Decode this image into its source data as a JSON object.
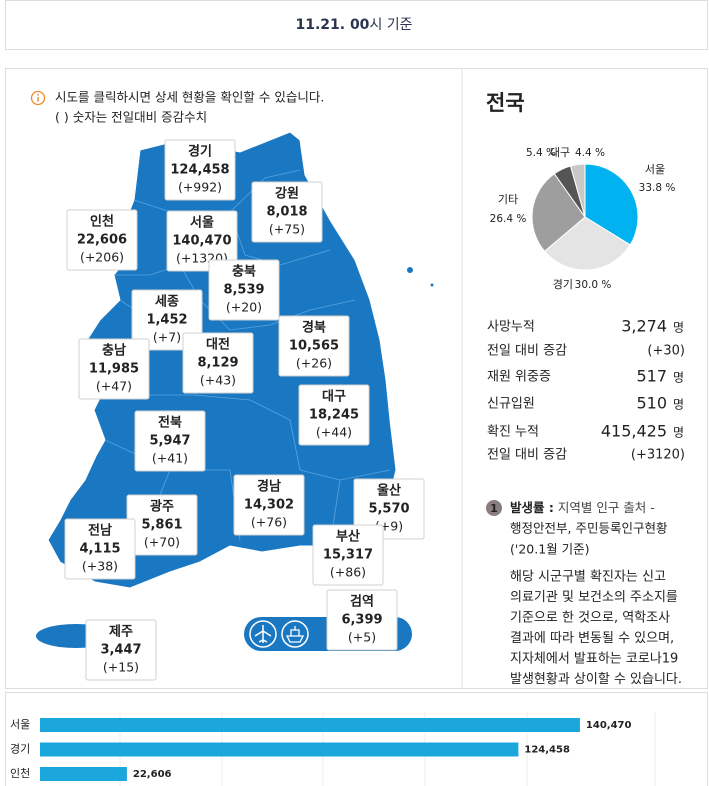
{
  "header": {
    "date": "11.21. 00",
    "suffix": "시 기준"
  },
  "notice": {
    "lines": [
      "시도를 클릭하시면 상세 현황을 확인할 수 있습니다.",
      "( ) 숫자는 전일대비 증감수치"
    ]
  },
  "regions": [
    {
      "name": "경기",
      "total": "124,458",
      "change": "(+992)"
    },
    {
      "name": "강원",
      "total": "8,018",
      "change": "(+75)"
    },
    {
      "name": "인천",
      "total": "22,606",
      "change": "(+206)"
    },
    {
      "name": "서울",
      "total": "140,470",
      "change": "(+1320)"
    },
    {
      "name": "충북",
      "total": "8,539",
      "change": "(+20)"
    },
    {
      "name": "세종",
      "total": "1,452",
      "change": "(+7)"
    },
    {
      "name": "충남",
      "total": "11,985",
      "change": "(+47)"
    },
    {
      "name": "대전",
      "total": "8,129",
      "change": "(+43)"
    },
    {
      "name": "경북",
      "total": "10,565",
      "change": "(+26)"
    },
    {
      "name": "대구",
      "total": "18,245",
      "change": "(+44)"
    },
    {
      "name": "전북",
      "total": "5,947",
      "change": "(+41)"
    },
    {
      "name": "경남",
      "total": "14,302",
      "change": "(+76)"
    },
    {
      "name": "울산",
      "total": "5,570",
      "change": "(+9)"
    },
    {
      "name": "광주",
      "total": "5,861",
      "change": "(+70)"
    },
    {
      "name": "전남",
      "total": "4,115",
      "change": "(+38)"
    },
    {
      "name": "부산",
      "total": "15,317",
      "change": "(+86)"
    },
    {
      "name": "검역",
      "total": "6,399",
      "change": "(+5)"
    },
    {
      "name": "제주",
      "total": "3,447",
      "change": "(+15)"
    }
  ],
  "summary": {
    "title": "전국",
    "pie": {
      "slices": [
        {
          "name": "서울",
          "value": 33.8,
          "label": "33.8 %",
          "color": "#00b3f0"
        },
        {
          "name": "경기",
          "value": 30.0,
          "label": "30.0 %",
          "color": "#e4e4e4"
        },
        {
          "name": "기타",
          "value": 26.4,
          "label": "26.4 %",
          "color": "#9e9e9e"
        },
        {
          "value": 5.4,
          "label": "5.4 %",
          "color": "#555555"
        },
        {
          "name": "대구",
          "value": 4.4,
          "label": "4.4 %",
          "color": "#c8c8c8"
        }
      ]
    },
    "stats": [
      {
        "label": "사망누적",
        "value": "3,274",
        "unit": "명"
      },
      {
        "label": "전일 대비 증감",
        "value": "(+30)",
        "color": "#2b8fd6"
      },
      {
        "label": "재원 위중증",
        "value": "517",
        "unit": "명"
      },
      {
        "label": "신규입원",
        "value": "510",
        "unit": "명"
      },
      {
        "label": "확진 누적",
        "value": "415,425",
        "unit": "명"
      },
      {
        "label": "전일 대비 증감",
        "value": "(+3120)",
        "color": "#2b8fd6"
      }
    ]
  },
  "note": {
    "badge": "1",
    "title": "발생률 :",
    "source": [
      "지역별 인구 출처 -",
      "행정안전부, 주민등록인구현황",
      "('20.1월 기준)"
    ],
    "body": [
      "해당 시군구별 확진자는 신고",
      "의료기관 및 보건소의 주소지를",
      "기준으로 한 것으로, 역학조사",
      "결과에 따라 변동될 수 있으며,",
      "지자체에서 발표하는 코로나19",
      "발생현황과 상이할 수 있습니다."
    ]
  },
  "chart_data": {
    "type": "bar",
    "categories": [
      "서울",
      "경기",
      "인천"
    ],
    "values": [
      140470,
      124458,
      22606
    ],
    "value_labels": [
      "140,470",
      "124,458",
      "22,606"
    ],
    "color": "#1ba6dc",
    "xlim": [
      0,
      160000
    ]
  }
}
